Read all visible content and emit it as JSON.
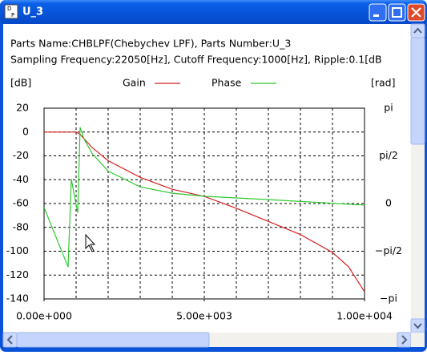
{
  "window": {
    "title": "U_3"
  },
  "header": {
    "line1": "Parts Name:CHBLPF(Chebychev LPF), Parts Number:U_3",
    "line2": "Sampling Frequency:22050[Hz], Cutoff Frequency:1000[Hz], Ripple:0.1[dB"
  },
  "chart_data": {
    "type": "line",
    "y_label": "[dB]",
    "y2_label": "[rad]",
    "xlim": [
      0,
      10000
    ],
    "xticks": [
      {
        "value": 0,
        "label": "0.00e+000"
      },
      {
        "value": 5000,
        "label": "5.00e+003"
      },
      {
        "value": 10000,
        "label": "1.00e+004"
      }
    ],
    "xgrid": [
      1000,
      2000,
      3000,
      4000,
      5000,
      6000,
      7000,
      8000,
      9000
    ],
    "ylim": [
      -140,
      20
    ],
    "yticks": [
      20,
      0,
      -20,
      -40,
      -60,
      -80,
      -100,
      -120,
      -140
    ],
    "y2lim": [
      -3.14159,
      3.14159
    ],
    "y2ticks": [
      {
        "value": 3.14159,
        "label": "pi"
      },
      {
        "value": 1.5708,
        "label": "pi/2"
      },
      0,
      {
        "value": -1.5708,
        "label": "−pi/2"
      },
      {
        "value": -3.14159,
        "label": "−pi"
      }
    ],
    "grid": true,
    "series": [
      {
        "name": "Gain",
        "color": "#d42020",
        "x": [
          0,
          1000,
          1125,
          1500,
          2000,
          3000,
          4000,
          5000,
          6000,
          7000,
          8000,
          9000,
          9500,
          10000
        ],
        "values": [
          0,
          0,
          -2,
          -13,
          -24,
          -38,
          -48,
          -54,
          -64,
          -75,
          -86,
          -101,
          -113,
          -134
        ]
      },
      {
        "name": "Phase",
        "color": "#30c830",
        "axis": "y2",
        "x": [
          0,
          750,
          850,
          1050,
          1125,
          1250,
          1500,
          2000,
          3000,
          4000,
          5000,
          7000,
          10000
        ],
        "values": [
          -0.13,
          -2.09,
          0.81,
          -0.31,
          2.51,
          2.12,
          1.65,
          1.07,
          0.55,
          0.34,
          0.24,
          0.13,
          -0.05
        ]
      }
    ]
  }
}
